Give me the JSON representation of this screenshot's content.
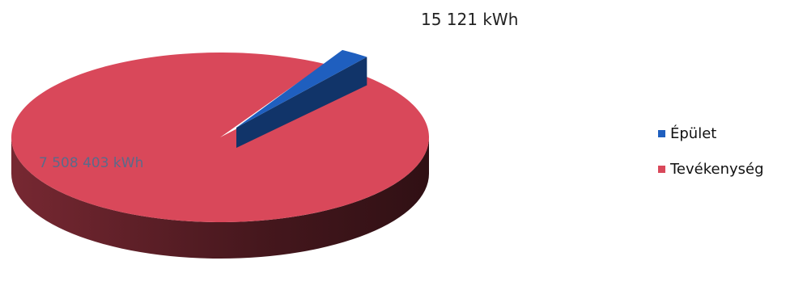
{
  "chart_data": {
    "type": "pie",
    "title": "",
    "slices": [
      {
        "name": "Épület",
        "value": 15121,
        "label": "15 121 kWh",
        "color": "#1f5fbf"
      },
      {
        "name": "Tevékenység",
        "value": 7508403,
        "label": "7 508 403 kWh",
        "color": "#d9485a"
      }
    ],
    "three_d": true,
    "exploded_slice": "Épület",
    "legend_position": "right"
  }
}
